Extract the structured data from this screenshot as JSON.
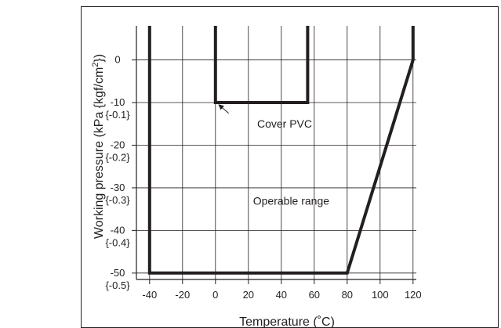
{
  "chart_data": {
    "type": "line",
    "title": "",
    "xlabel": "Temperature (˚C)",
    "ylabel_main": "Working pressure (kPa {kgf/cm",
    "ylabel_sup": "2",
    "ylabel_end": "})",
    "xlim": [
      -48,
      122
    ],
    "ylim": [
      -51.5,
      8
    ],
    "x_ticks": [
      {
        "value": -40,
        "label": "-40"
      },
      {
        "value": -20,
        "label": "-20"
      },
      {
        "value": 0,
        "label": "0"
      },
      {
        "value": 20,
        "label": "20"
      },
      {
        "value": 40,
        "label": "40"
      },
      {
        "value": 60,
        "label": "60"
      },
      {
        "value": 80,
        "label": "80"
      },
      {
        "value": 100,
        "label": "100"
      },
      {
        "value": 120,
        "label": "120"
      }
    ],
    "y_ticks": [
      {
        "value": 0,
        "kpa": "0",
        "kgf": ""
      },
      {
        "value": -10,
        "kpa": "-10",
        "kgf": "{-0.1}"
      },
      {
        "value": -20,
        "kpa": "-20",
        "kgf": "{-0.2}"
      },
      {
        "value": -30,
        "kpa": "-30",
        "kgf": "{-0.3}"
      },
      {
        "value": -40,
        "kpa": "-40",
        "kgf": "{-0.4}"
      },
      {
        "value": -50,
        "kpa": "-50",
        "kgf": "{-0.5}"
      }
    ],
    "grid": true,
    "series": [
      {
        "label": "Operable range",
        "points": [
          [
            -40,
            8
          ],
          [
            -40,
            -50
          ],
          [
            80,
            -50
          ],
          [
            120,
            0
          ],
          [
            120,
            8
          ]
        ]
      },
      {
        "label": "Cover PVC",
        "points": [
          [
            0,
            8
          ],
          [
            0,
            -10
          ],
          [
            56,
            -10
          ],
          [
            56,
            8
          ]
        ]
      }
    ],
    "annotations": [
      {
        "text": "Cover PVC",
        "x": 42,
        "y": -15,
        "arrow_from": [
          8,
          -12.5
        ],
        "arrow_to": [
          2,
          -10.5
        ]
      },
      {
        "text": "Operable range",
        "x": 46,
        "y": -33
      }
    ],
    "colors": {
      "line": "#231f20",
      "grid": "#231f20",
      "text": "#231f20"
    }
  }
}
